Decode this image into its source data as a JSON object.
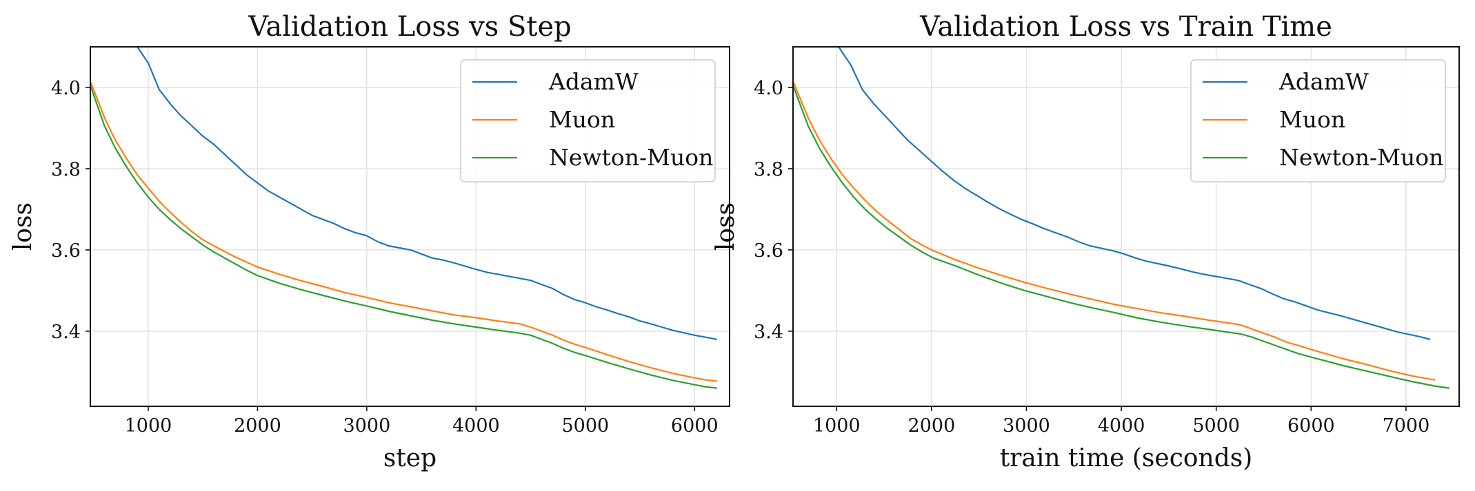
{
  "chart_data": [
    {
      "type": "line",
      "title": "Validation Loss vs Step",
      "xlabel": "step",
      "ylabel": "loss",
      "xlim": [
        470,
        6320
      ],
      "ylim": [
        3.215,
        4.1
      ],
      "xticks": [
        1000,
        2000,
        3000,
        4000,
        5000,
        6000
      ],
      "xtick_labels": [
        "1000",
        "2000",
        "3000",
        "4000",
        "5000",
        "6000"
      ],
      "yticks": [
        3.4,
        3.6,
        3.8,
        4.0
      ],
      "ytick_labels": [
        "3.4",
        "3.6",
        "3.8",
        "4.0"
      ],
      "grid": true,
      "legend": "upper right",
      "series": [
        {
          "name": "AdamW",
          "color": "#1f77b4",
          "x": [
            470,
            900,
            1000,
            1100,
            1200,
            1300,
            1400,
            1500,
            1600,
            1700,
            1800,
            1900,
            2000,
            2100,
            2200,
            2300,
            2400,
            2500,
            2600,
            2700,
            2800,
            2900,
            3000,
            3100,
            3200,
            3300,
            3400,
            3500,
            3600,
            3700,
            3800,
            3900,
            4000,
            4100,
            4200,
            4300,
            4400,
            4500,
            4600,
            4700,
            4800,
            4900,
            5000,
            5100,
            5200,
            5300,
            5400,
            5500,
            5600,
            5700,
            5800,
            5900,
            6000,
            6100,
            6200
          ],
          "y": [
            4.1,
            4.1,
            4.06,
            3.995,
            3.96,
            3.93,
            3.905,
            3.88,
            3.86,
            3.835,
            3.81,
            3.785,
            3.765,
            3.745,
            3.73,
            3.715,
            3.7,
            3.685,
            3.675,
            3.665,
            3.652,
            3.642,
            3.635,
            3.62,
            3.61,
            3.605,
            3.6,
            3.59,
            3.58,
            3.575,
            3.568,
            3.56,
            3.552,
            3.545,
            3.54,
            3.535,
            3.53,
            3.525,
            3.515,
            3.505,
            3.49,
            3.478,
            3.47,
            3.46,
            3.452,
            3.443,
            3.435,
            3.425,
            3.418,
            3.41,
            3.402,
            3.396,
            3.39,
            3.385,
            3.38
          ]
        },
        {
          "name": "Muon",
          "color": "#ff7f0e",
          "x": [
            470,
            600,
            700,
            800,
            900,
            1000,
            1100,
            1200,
            1300,
            1400,
            1500,
            1600,
            1700,
            1800,
            1900,
            2000,
            2200,
            2400,
            2600,
            2800,
            3000,
            3200,
            3400,
            3600,
            3800,
            4000,
            4200,
            4400,
            4500,
            4600,
            4700,
            4800,
            4900,
            5000,
            5200,
            5400,
            5600,
            5800,
            6000,
            6100,
            6200
          ],
          "y": [
            4.015,
            3.925,
            3.87,
            3.825,
            3.785,
            3.752,
            3.72,
            3.693,
            3.668,
            3.645,
            3.625,
            3.61,
            3.596,
            3.582,
            3.57,
            3.558,
            3.54,
            3.524,
            3.51,
            3.495,
            3.483,
            3.47,
            3.46,
            3.45,
            3.44,
            3.433,
            3.425,
            3.418,
            3.41,
            3.4,
            3.39,
            3.378,
            3.368,
            3.36,
            3.342,
            3.325,
            3.31,
            3.296,
            3.285,
            3.28,
            3.277
          ]
        },
        {
          "name": "Newton-Muon",
          "color": "#2ca02c",
          "x": [
            470,
            600,
            700,
            800,
            900,
            1000,
            1100,
            1200,
            1300,
            1400,
            1500,
            1600,
            1700,
            1800,
            1900,
            2000,
            2200,
            2400,
            2600,
            2800,
            3000,
            3200,
            3400,
            3600,
            3800,
            4000,
            4200,
            4400,
            4500,
            4600,
            4700,
            4800,
            4900,
            5000,
            5200,
            5400,
            5600,
            5800,
            6000,
            6100,
            6200
          ],
          "y": [
            4.005,
            3.905,
            3.85,
            3.805,
            3.765,
            3.73,
            3.7,
            3.675,
            3.652,
            3.632,
            3.612,
            3.595,
            3.58,
            3.565,
            3.55,
            3.537,
            3.518,
            3.502,
            3.488,
            3.474,
            3.462,
            3.449,
            3.438,
            3.427,
            3.418,
            3.41,
            3.402,
            3.395,
            3.39,
            3.38,
            3.37,
            3.358,
            3.348,
            3.34,
            3.323,
            3.307,
            3.292,
            3.279,
            3.268,
            3.263,
            3.26
          ]
        }
      ]
    },
    {
      "type": "line",
      "title": "Validation Loss vs Train Time",
      "xlabel": "train time (seconds)",
      "ylabel": "loss",
      "xlim": [
        540,
        7560
      ],
      "ylim": [
        3.215,
        4.1
      ],
      "xticks": [
        1000,
        2000,
        3000,
        4000,
        5000,
        6000,
        7000
      ],
      "xtick_labels": [
        "1000",
        "2000",
        "3000",
        "4000",
        "5000",
        "6000",
        "7000"
      ],
      "yticks": [
        3.4,
        3.6,
        3.8,
        4.0
      ],
      "ytick_labels": [
        "3.4",
        "3.6",
        "3.8",
        "4.0"
      ],
      "grid": true,
      "legend": "upper right",
      "series": [
        {
          "name": "AdamW",
          "color": "#1f77b4",
          "x": [
            540,
            1020,
            1150,
            1270,
            1390,
            1510,
            1630,
            1750,
            1870,
            1990,
            2110,
            2230,
            2350,
            2470,
            2590,
            2710,
            2830,
            2950,
            3070,
            3190,
            3310,
            3430,
            3550,
            3670,
            3790,
            3910,
            4030,
            4150,
            4270,
            4390,
            4510,
            4630,
            4750,
            4870,
            4990,
            5110,
            5230,
            5350,
            5470,
            5590,
            5710,
            5830,
            5950,
            6070,
            6190,
            6310,
            6430,
            6550,
            6670,
            6790,
            6910,
            7030,
            7150,
            7250
          ],
          "y": [
            4.1,
            4.1,
            4.055,
            3.995,
            3.96,
            3.93,
            3.9,
            3.87,
            3.845,
            3.82,
            3.795,
            3.772,
            3.752,
            3.735,
            3.718,
            3.702,
            3.688,
            3.675,
            3.664,
            3.652,
            3.642,
            3.632,
            3.62,
            3.61,
            3.604,
            3.598,
            3.59,
            3.58,
            3.572,
            3.566,
            3.56,
            3.553,
            3.546,
            3.54,
            3.535,
            3.53,
            3.525,
            3.515,
            3.505,
            3.492,
            3.48,
            3.472,
            3.462,
            3.452,
            3.445,
            3.438,
            3.43,
            3.422,
            3.414,
            3.406,
            3.398,
            3.392,
            3.386,
            3.38
          ]
        },
        {
          "name": "Muon",
          "color": "#ff7f0e",
          "x": [
            540,
            700,
            820,
            940,
            1060,
            1180,
            1300,
            1420,
            1540,
            1660,
            1780,
            1900,
            2020,
            2260,
            2500,
            2740,
            2980,
            3220,
            3460,
            3700,
            3940,
            4180,
            4420,
            4660,
            4900,
            5140,
            5260,
            5380,
            5500,
            5620,
            5740,
            5860,
            6100,
            6340,
            6580,
            6820,
            7060,
            7300
          ],
          "y": [
            4.015,
            3.925,
            3.87,
            3.825,
            3.785,
            3.752,
            3.722,
            3.695,
            3.672,
            3.65,
            3.628,
            3.612,
            3.598,
            3.575,
            3.555,
            3.537,
            3.52,
            3.505,
            3.491,
            3.478,
            3.465,
            3.455,
            3.445,
            3.437,
            3.428,
            3.42,
            3.415,
            3.405,
            3.395,
            3.385,
            3.373,
            3.365,
            3.348,
            3.332,
            3.318,
            3.303,
            3.29,
            3.28
          ]
        },
        {
          "name": "Newton-Muon",
          "color": "#2ca02c",
          "x": [
            540,
            700,
            820,
            940,
            1060,
            1180,
            1300,
            1420,
            1540,
            1660,
            1780,
            1900,
            2020,
            2260,
            2500,
            2740,
            2980,
            3220,
            3460,
            3700,
            3940,
            4180,
            4420,
            4660,
            4900,
            5140,
            5260,
            5380,
            5500,
            5620,
            5740,
            5860,
            6100,
            6340,
            6580,
            6820,
            7060,
            7300,
            7450
          ],
          "y": [
            4.005,
            3.905,
            3.85,
            3.805,
            3.765,
            3.73,
            3.7,
            3.675,
            3.652,
            3.632,
            3.612,
            3.595,
            3.58,
            3.56,
            3.538,
            3.518,
            3.5,
            3.485,
            3.47,
            3.457,
            3.445,
            3.432,
            3.422,
            3.413,
            3.405,
            3.397,
            3.393,
            3.385,
            3.375,
            3.365,
            3.355,
            3.345,
            3.33,
            3.315,
            3.302,
            3.289,
            3.276,
            3.265,
            3.26
          ]
        }
      ]
    }
  ]
}
